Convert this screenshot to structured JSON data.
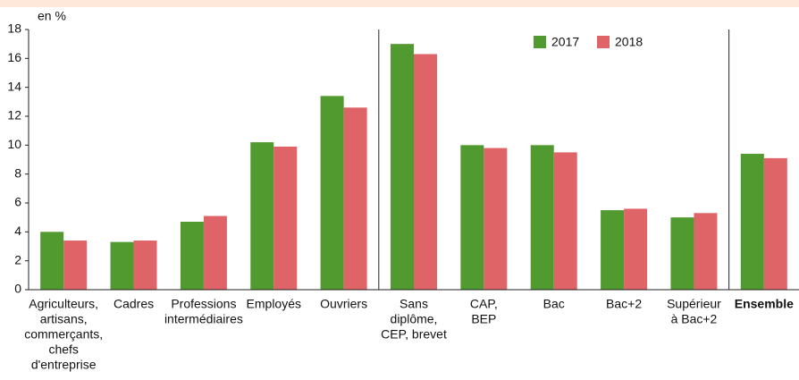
{
  "chart_data": {
    "type": "bar",
    "y_label": "en %",
    "categories": [
      [
        "Agriculteurs,",
        "artisans,",
        "commerçants,",
        "chefs",
        "d'entreprise"
      ],
      [
        "Cadres"
      ],
      [
        "Professions",
        "intermédiaires"
      ],
      [
        "Employés"
      ],
      [
        "Ouvriers"
      ],
      [
        "Sans",
        "diplôme,",
        "CEP, brevet"
      ],
      [
        "CAP,",
        "BEP"
      ],
      [
        "Bac"
      ],
      [
        "Bac+2"
      ],
      [
        "Supérieur",
        "à Bac+2"
      ],
      [
        "Ensemble"
      ]
    ],
    "series": [
      {
        "name": "2017",
        "color": "#519a2f",
        "values": [
          4.0,
          3.3,
          4.7,
          10.2,
          13.4,
          17.0,
          10.0,
          10.0,
          5.5,
          5.0,
          9.4
        ]
      },
      {
        "name": "2018",
        "color": "#df6468",
        "values": [
          3.4,
          3.4,
          5.1,
          9.9,
          12.6,
          16.3,
          9.8,
          9.5,
          5.6,
          5.3,
          9.1
        ]
      }
    ],
    "ylim": [
      0,
      18
    ],
    "yticks": [
      0,
      2,
      4,
      6,
      8,
      10,
      12,
      14,
      16,
      18
    ],
    "grid": false,
    "legend": "top"
  }
}
